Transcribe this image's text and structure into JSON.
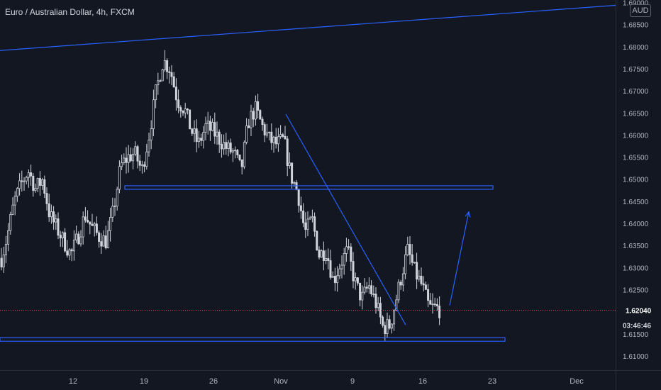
{
  "header": {
    "title": "Euro / Australian Dollar, 4h, FXCM",
    "currency": "AUD"
  },
  "colors": {
    "background": "#131722",
    "candle": "#d1d4dc",
    "drawing": "#2962ff",
    "axis_text": "#b2b5be",
    "price_line": "#e74c6a"
  },
  "chart_data": {
    "type": "candlestick",
    "title": "Euro / Australian Dollar, 4h, FXCM",
    "currency": "AUD",
    "x_tick_labels": [
      "12",
      "19",
      "26",
      "Nov",
      "9",
      "16",
      "23",
      "Dec"
    ],
    "y_tick_labels": [
      "1.69000",
      "1.68500",
      "1.68000",
      "1.67500",
      "1.67000",
      "1.66500",
      "1.66000",
      "1.65500",
      "1.65000",
      "1.64500",
      "1.64000",
      "1.63500",
      "1.63000",
      "1.62500",
      "1.61500",
      "1.61000"
    ],
    "y_ticks": [
      1.69,
      1.685,
      1.68,
      1.675,
      1.67,
      1.665,
      1.66,
      1.655,
      1.65,
      1.645,
      1.64,
      1.635,
      1.63,
      1.625,
      1.615,
      1.61
    ],
    "ylim": [
      1.6075,
      1.69
    ],
    "current_price": "1.62040",
    "current_price_value": 1.6204,
    "countdown": "03:46:46",
    "price_path": [
      [
        0,
        1.631
      ],
      [
        10,
        1.637
      ],
      [
        20,
        1.645
      ],
      [
        30,
        1.649
      ],
      [
        40,
        1.652
      ],
      [
        50,
        1.648
      ],
      [
        60,
        1.65
      ],
      [
        70,
        1.642
      ],
      [
        80,
        1.639
      ],
      [
        90,
        1.636
      ],
      [
        100,
        1.633
      ],
      [
        110,
        1.637
      ],
      [
        120,
        1.642
      ],
      [
        130,
        1.639
      ],
      [
        140,
        1.637
      ],
      [
        150,
        1.636
      ],
      [
        160,
        1.643
      ],
      [
        170,
        1.653
      ],
      [
        180,
        1.655
      ],
      [
        190,
        1.656
      ],
      [
        200,
        1.652
      ],
      [
        210,
        1.66
      ],
      [
        220,
        1.67
      ],
      [
        230,
        1.677
      ],
      [
        240,
        1.675
      ],
      [
        250,
        1.668
      ],
      [
        260,
        1.666
      ],
      [
        270,
        1.661
      ],
      [
        280,
        1.658
      ],
      [
        290,
        1.662
      ],
      [
        300,
        1.661
      ],
      [
        310,
        1.659
      ],
      [
        320,
        1.657
      ],
      [
        330,
        1.656
      ],
      [
        340,
        1.652
      ],
      [
        350,
        1.663
      ],
      [
        360,
        1.666
      ],
      [
        370,
        1.662
      ],
      [
        380,
        1.659
      ],
      [
        390,
        1.658
      ],
      [
        400,
        1.659
      ],
      [
        410,
        1.651
      ],
      [
        420,
        1.647
      ],
      [
        430,
        1.638
      ],
      [
        440,
        1.641
      ],
      [
        450,
        1.633
      ],
      [
        460,
        1.634
      ],
      [
        470,
        1.627
      ],
      [
        480,
        1.631
      ],
      [
        490,
        1.634
      ],
      [
        500,
        1.627
      ],
      [
        510,
        1.623
      ],
      [
        520,
        1.626
      ],
      [
        530,
        1.622
      ],
      [
        540,
        1.6165
      ],
      [
        550,
        1.617
      ],
      [
        560,
        1.624
      ],
      [
        570,
        1.631
      ],
      [
        575,
        1.634
      ],
      [
        585,
        1.629
      ],
      [
        595,
        1.626
      ],
      [
        605,
        1.621
      ],
      [
        615,
        1.621
      ],
      [
        622,
        1.6204
      ]
    ],
    "drawings": [
      {
        "kind": "trendline",
        "points": [
          [
            0,
            1.6792
          ],
          [
            932,
            1.6902
          ]
        ]
      },
      {
        "kind": "trendline",
        "points": [
          [
            403,
            1.6648
          ],
          [
            572,
            1.6171
          ]
        ]
      },
      {
        "kind": "zone",
        "x": [
          176,
          695
        ],
        "y": [
          1.6486,
          1.648
        ]
      },
      {
        "kind": "zone",
        "x": [
          0,
          712
        ],
        "y": [
          1.6142,
          1.6136
        ]
      },
      {
        "kind": "arrow",
        "points": [
          [
            634,
            1.6215
          ],
          [
            661,
            1.6427
          ]
        ]
      }
    ]
  }
}
